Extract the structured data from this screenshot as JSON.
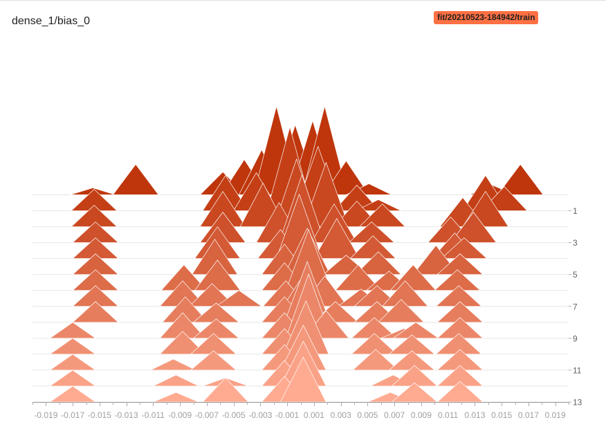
{
  "card": {
    "title": "dense_1/bias_0",
    "run_label": "fit/20210523-184942/train",
    "run_color": "#ff7043"
  },
  "chart_data": {
    "type": "histogram-offset",
    "title": "dense_1/bias_0",
    "xlim": [
      -0.02,
      0.02
    ],
    "x_ticks": [
      "-0.019",
      "-0.017",
      "-0.015",
      "-0.013",
      "-0.011",
      "-0.009",
      "-0.007",
      "-0.005",
      "-0.003",
      "-0.001",
      "0.001",
      "0.003",
      "0.005",
      "0.007",
      "0.009",
      "0.011",
      "0.013",
      "0.015",
      "0.017",
      "0.019"
    ],
    "y_ticks": [
      "1",
      "3",
      "5",
      "7",
      "9",
      "11",
      "13"
    ],
    "step_range": [
      0,
      14
    ],
    "color_oldest": "#bf360c",
    "color_newest": "#ffab91",
    "stroke_color": "#ffffff",
    "series": [
      {
        "step": 0,
        "peaks": [
          [
            -0.0155,
            10
          ],
          [
            -0.0123,
            44
          ],
          [
            -0.0058,
            33
          ],
          [
            -0.0042,
            51
          ],
          [
            -0.0029,
            65
          ],
          [
            -0.0018,
            128
          ],
          [
            -0.0004,
            101
          ],
          [
            0.0009,
            107
          ],
          [
            0.0018,
            128
          ],
          [
            0.0034,
            49
          ],
          [
            0.0051,
            16
          ],
          [
            0.0143,
            14
          ],
          [
            0.0164,
            44
          ]
        ]
      },
      {
        "step": 1,
        "peaks": [
          [
            -0.0154,
            31
          ],
          [
            -0.0056,
            51
          ],
          [
            -0.0033,
            55
          ],
          [
            -0.0008,
            121
          ],
          [
            0.0013,
            93
          ],
          [
            0.0042,
            37
          ],
          [
            0.0058,
            16
          ],
          [
            0.0138,
            51
          ],
          [
            0.0152,
            35
          ]
        ]
      },
      {
        "step": 2,
        "peaks": [
          [
            -0.0154,
            31
          ],
          [
            -0.0058,
            51
          ],
          [
            -0.0028,
            63
          ],
          [
            -0.0003,
            98
          ],
          [
            0.0019,
            93
          ],
          [
            0.0042,
            37
          ],
          [
            0.0061,
            33
          ],
          [
            0.0121,
            42
          ],
          [
            0.0138,
            51
          ]
        ]
      },
      {
        "step": 3,
        "peaks": [
          [
            -0.0153,
            30
          ],
          [
            -0.0058,
            44
          ],
          [
            -0.0016,
            58
          ],
          [
            0.0001,
            98
          ],
          [
            0.0025,
            56
          ],
          [
            0.0053,
            30
          ],
          [
            0.0112,
            37
          ],
          [
            0.0129,
            44
          ]
        ]
      },
      {
        "step": 4,
        "peaks": [
          [
            -0.0153,
            30
          ],
          [
            -0.0062,
            46
          ],
          [
            -0.0015,
            42
          ],
          [
            -0.0001,
            93
          ],
          [
            0.0027,
            58
          ],
          [
            0.0054,
            33
          ],
          [
            0.0115,
            37
          ],
          [
            0.0122,
            30
          ]
        ]
      },
      {
        "step": 5,
        "peaks": [
          [
            -0.0153,
            30
          ],
          [
            -0.0064,
            51
          ],
          [
            -0.0012,
            44
          ],
          [
            0.0005,
            67
          ],
          [
            0.0034,
            28
          ],
          [
            0.0058,
            33
          ],
          [
            0.0101,
            42
          ],
          [
            0.0119,
            30
          ]
        ]
      },
      {
        "step": 6,
        "peaks": [
          [
            -0.0153,
            30
          ],
          [
            -0.0087,
            37
          ],
          [
            -0.0062,
            44
          ],
          [
            -0.0012,
            40
          ],
          [
            0.0006,
            88
          ],
          [
            0.0043,
            37
          ],
          [
            0.0066,
            28
          ],
          [
            0.0084,
            37
          ],
          [
            0.0117,
            30
          ]
        ]
      },
      {
        "step": 7,
        "peaks": [
          [
            -0.0153,
            30
          ],
          [
            -0.0088,
            37
          ],
          [
            -0.0066,
            33
          ],
          [
            -0.0046,
            23
          ],
          [
            -0.0011,
            37
          ],
          [
            0.0004,
            51
          ],
          [
            0.0018,
            44
          ],
          [
            0.0045,
            25
          ],
          [
            0.0057,
            30
          ],
          [
            0.0078,
            37
          ],
          [
            0.0118,
            30
          ]
        ]
      },
      {
        "step": 8,
        "peaks": [
          [
            -0.0153,
            30
          ],
          [
            -0.0086,
            37
          ],
          [
            -0.0063,
            28
          ],
          [
            -0.0012,
            37
          ],
          [
            0.0005,
            88
          ],
          [
            0.0026,
            30
          ],
          [
            0.0057,
            30
          ],
          [
            0.0075,
            33
          ],
          [
            0.0119,
            30
          ]
        ]
      },
      {
        "step": 9,
        "peaks": [
          [
            -0.017,
            23
          ],
          [
            -0.0088,
            37
          ],
          [
            -0.0063,
            28
          ],
          [
            -0.0012,
            37
          ],
          [
            0.0006,
            93
          ],
          [
            0.0019,
            40
          ],
          [
            0.0055,
            30
          ],
          [
            0.0077,
            14
          ],
          [
            0.0086,
            23
          ],
          [
            0.0119,
            30
          ]
        ]
      },
      {
        "step": 10,
        "peaks": [
          [
            -0.017,
            23
          ],
          [
            -0.0088,
            33
          ],
          [
            -0.0065,
            30
          ],
          [
            -0.0012,
            37
          ],
          [
            0.0004,
            77
          ],
          [
            0.0055,
            30
          ],
          [
            0.0083,
            28
          ],
          [
            0.0118,
            30
          ]
        ]
      },
      {
        "step": 11,
        "peaks": [
          [
            -0.017,
            23
          ],
          [
            -0.0095,
            16
          ],
          [
            -0.0065,
            28
          ],
          [
            -0.0012,
            37
          ],
          [
            0.0002,
            65
          ],
          [
            0.0056,
            30
          ],
          [
            0.0083,
            28
          ],
          [
            0.0119,
            30
          ]
        ]
      },
      {
        "step": 12,
        "peaks": [
          [
            -0.017,
            23
          ],
          [
            -0.0093,
            16
          ],
          [
            -0.0056,
            12
          ],
          [
            -0.0012,
            37
          ],
          [
            0.0002,
            65
          ],
          [
            0.0069,
            16
          ],
          [
            0.0085,
            30
          ],
          [
            0.0119,
            30
          ]
        ]
      },
      {
        "step": 13,
        "peaks": [
          [
            -0.017,
            23
          ],
          [
            -0.0093,
            14
          ],
          [
            -0.0056,
            35
          ],
          [
            -0.0012,
            37
          ],
          [
            0.0002,
            65
          ],
          [
            0.0067,
            14
          ],
          [
            0.0085,
            28
          ],
          [
            0.0119,
            30
          ]
        ]
      }
    ]
  }
}
